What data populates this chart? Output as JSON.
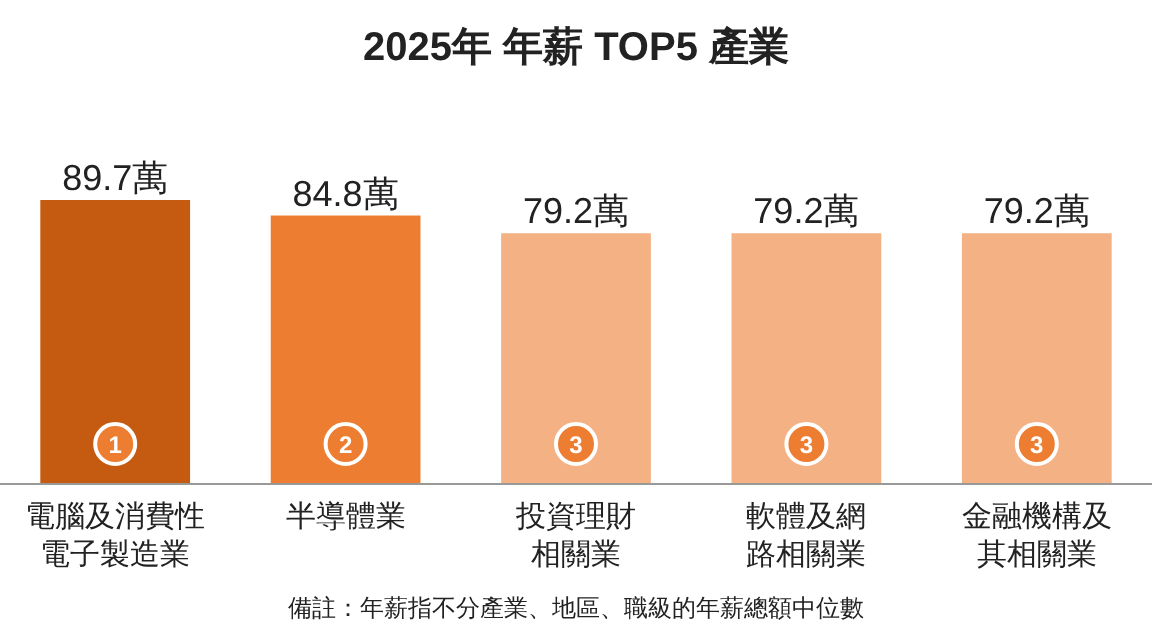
{
  "chart_data": {
    "type": "bar",
    "title": "2025年 年薪 TOP5 產業",
    "categories": [
      "電腦及消費性電子製造業",
      "半導體業",
      "投資理財相關業",
      "軟體及網路相關業",
      "金融機構及其相關業"
    ],
    "values": [
      89.7,
      84.8,
      79.2,
      79.2,
      79.2
    ],
    "colors": [
      "#c55a11",
      "#ed7d31",
      "#f4b183",
      "#f4b183",
      "#f4b183"
    ],
    "value_labels": [
      "89.7萬",
      "84.8萬",
      "79.2萬",
      "79.2萬",
      "79.2萬"
    ],
    "annotations": [
      {
        "text": "1",
        "x": "電腦及消費性電子製造業"
      },
      {
        "text": "2",
        "x": "半導體業"
      },
      {
        "text": "3",
        "x": "投資理財相關業"
      },
      {
        "text": "3",
        "x": "軟體及網路相關業"
      },
      {
        "text": "3",
        "x": "金融機構及其相關業"
      },
      "備註：年薪指不分產業、地區、職級的年薪總額中位數"
    ]
  }
}
